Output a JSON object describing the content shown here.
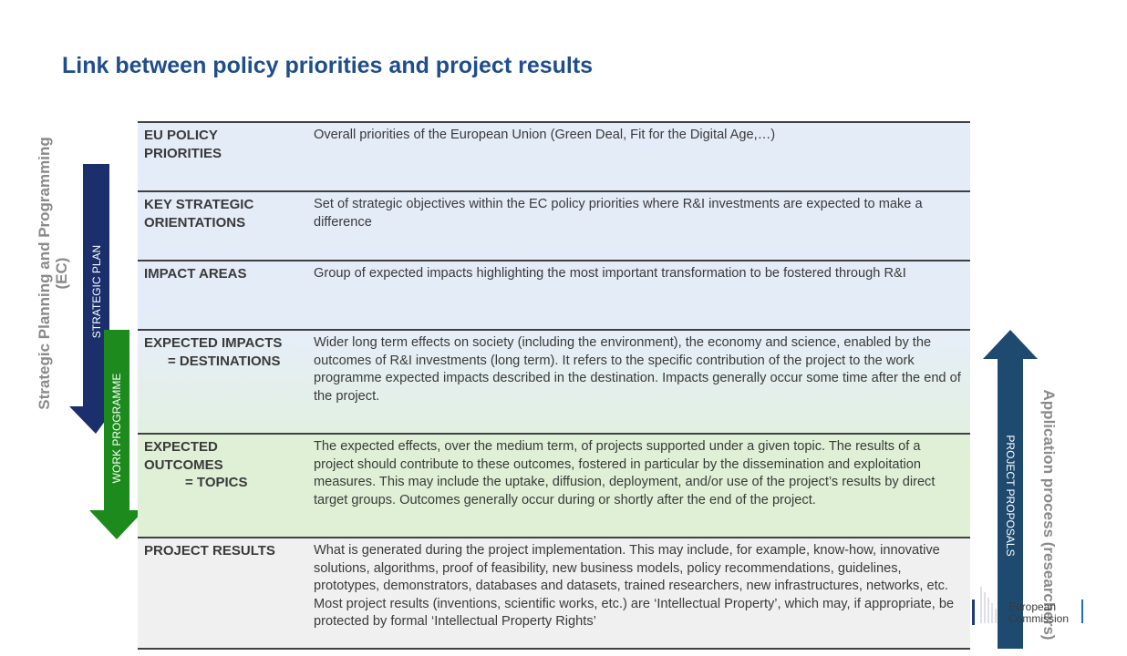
{
  "title": "Link between policy priorities and project results",
  "left_vertical_label_line1": "Strategic Planning and Programming",
  "left_vertical_label_line2": "(EC)",
  "strategic_plan_arrow_label": "STRATEGIC PLAN",
  "work_programme_arrow_label": "WORK PROGRAMME",
  "project_proposals_arrow_label": "PROJECT PROPOSALS",
  "right_vertical_label": "Application process (researchers)",
  "logo_line1": "European",
  "logo_line2": "Commission",
  "colors": {
    "title": "#1f4e8c",
    "strategic_plan_arrow": "#1a2f6b",
    "work_programme_arrow": "#1d8a1d",
    "project_proposals_arrow": "#1d4a6e"
  },
  "rows": [
    {
      "label_line1": "EU POLICY",
      "label_line2": "PRIORITIES",
      "label_line3": "",
      "description": "Overall priorities of the European Union (Green Deal, Fit for the Digital Age,…)"
    },
    {
      "label_line1": "KEY STRATEGIC",
      "label_line2": "ORIENTATIONS",
      "label_line3": "",
      "description": "Set of strategic objectives within the EC policy priorities where R&I investments are expected to make a difference"
    },
    {
      "label_line1": "IMPACT AREAS",
      "label_line2": "",
      "label_line3": "",
      "description": "Group of expected impacts highlighting the most important transformation to be fostered through R&I"
    },
    {
      "label_line1": "EXPECTED IMPACTS",
      "label_line2": "= DESTINATIONS",
      "label_line3": "",
      "description": "Wider long term effects on society (including the environment), the economy and science, enabled by the outcomes of R&I investments (long term). It refers to the specific contribution of the project to the work programme expected impacts described in the destination. Impacts generally occur some time after the end of the project."
    },
    {
      "label_line1": "EXPECTED",
      "label_line2": "OUTCOMES",
      "label_line3": "= TOPICS",
      "description": "The expected effects, over the medium term, of projects supported under a given topic. The results of a project should contribute to these outcomes, fostered in particular by the dissemination and exploitation measures. This may include the uptake, diffusion, deployment, and/or use of the project’s results by direct target groups. Outcomes generally occur during or shortly after the end of the project."
    },
    {
      "label_line1": "PROJECT RESULTS",
      "label_line2": "",
      "label_line3": "",
      "description": "What is generated during the project implementation. This may include, for example, know-how, innovative solutions, algorithms, proof of feasibility, new business models, policy recommendations, guidelines, prototypes, demonstrators, databases and datasets, trained researchers, new infrastructures, networks, etc. Most project results (inventions, scientific works, etc.) are ‘Intellectual Property’, which may, if appropriate, be protected by formal ‘Intellectual Property Rights’"
    }
  ]
}
